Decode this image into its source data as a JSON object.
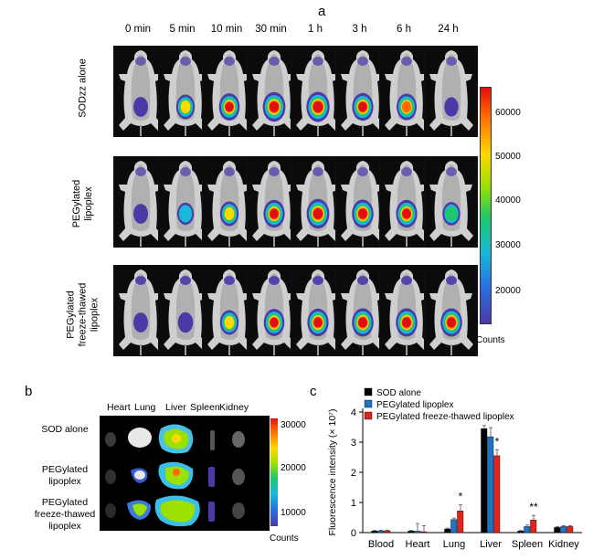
{
  "panel_a": {
    "label": "a",
    "time_labels": [
      "0 min",
      "5 min",
      "10 min",
      "30 min",
      "1 h",
      "3 h",
      "6 h",
      "24 h"
    ],
    "row_labels": [
      [
        "SODzz alone"
      ],
      [
        "PEGylated",
        "lipoplex"
      ],
      [
        "PEGylated",
        "freeze-thawed",
        "lipoplex"
      ]
    ],
    "signal_levels": [
      [
        0.15,
        0.55,
        0.75,
        0.95,
        1.0,
        0.8,
        0.7,
        0.1
      ],
      [
        0.15,
        0.35,
        0.55,
        0.8,
        0.95,
        0.85,
        0.8,
        0.45
      ],
      [
        0.15,
        0.2,
        0.55,
        0.75,
        0.8,
        0.85,
        0.85,
        0.85
      ]
    ],
    "colorbar": {
      "ticks": [
        "60000",
        "50000",
        "40000",
        "30000",
        "20000"
      ],
      "unit": "Counts"
    }
  },
  "panel_b": {
    "label": "b",
    "organs": [
      "Heart",
      "Lung",
      "Liver",
      "Spleen",
      "Kidney"
    ],
    "row_labels": [
      [
        "SOD alone"
      ],
      [
        "PEGylated",
        "lipoplex"
      ],
      [
        "PEGylated",
        "freeze-thawed",
        "lipoplex"
      ]
    ],
    "colorbar": {
      "ticks": [
        "30000",
        "20000",
        "10000"
      ],
      "unit": "Counts"
    }
  },
  "panel_c": {
    "label": "c"
  },
  "colors": {
    "sod_alone": "#000000",
    "peg_lipoplex": "#1f73c4",
    "peg_ft_lipoplex": "#e2231a"
  },
  "chart_data": {
    "type": "bar",
    "categories": [
      "Blood",
      "Heart",
      "Lung",
      "Liver",
      "Spleen",
      "Kidney"
    ],
    "series": [
      {
        "name": "SOD alone",
        "values": [
          0.05,
          0.05,
          0.12,
          3.45,
          0.05,
          0.17
        ],
        "errors": [
          0.02,
          0.02,
          0.03,
          0.1,
          0.02,
          0.03
        ]
      },
      {
        "name": "PEGylated lipoplex",
        "values": [
          0.06,
          0.05,
          0.43,
          3.18,
          0.2,
          0.2
        ],
        "errors": [
          0.02,
          0.25,
          0.05,
          0.3,
          0.05,
          0.03
        ]
      },
      {
        "name": "PEGylated freeze-thawed lipoplex",
        "values": [
          0.06,
          0.03,
          0.72,
          2.55,
          0.42,
          0.2
        ],
        "errors": [
          0.02,
          0.2,
          0.2,
          0.2,
          0.15,
          0.03
        ]
      }
    ],
    "significance": [
      {
        "category": "Lung",
        "label": "*"
      },
      {
        "category": "Liver",
        "label": "*"
      },
      {
        "category": "Spleen",
        "label": "**"
      }
    ],
    "ylabel": "Fluorescence intensity (× 10⁷)",
    "yticks": [
      "0",
      "1",
      "2",
      "3",
      "4"
    ],
    "ylim": [
      0,
      4
    ],
    "legend_position": "top-left"
  }
}
